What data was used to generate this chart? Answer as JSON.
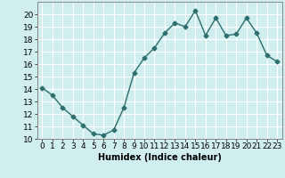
{
  "x": [
    0,
    1,
    2,
    3,
    4,
    5,
    6,
    7,
    8,
    9,
    10,
    11,
    12,
    13,
    14,
    15,
    16,
    17,
    18,
    19,
    20,
    21,
    22,
    23
  ],
  "y": [
    14.1,
    13.5,
    12.5,
    11.8,
    11.1,
    10.4,
    10.3,
    10.7,
    12.5,
    15.3,
    16.5,
    17.3,
    18.5,
    19.3,
    19.0,
    20.3,
    18.3,
    19.7,
    18.3,
    18.4,
    19.7,
    18.5,
    16.7,
    16.2
  ],
  "line_color": "#2d6e6e",
  "marker": "D",
  "markersize": 2.5,
  "linewidth": 1.0,
  "bg_color": "#d0eeee",
  "grid_color": "#ffffff",
  "xlabel": "Humidex (Indice chaleur)",
  "xlim": [
    -0.5,
    23.5
  ],
  "ylim": [
    10,
    21
  ],
  "yticks": [
    10,
    11,
    12,
    13,
    14,
    15,
    16,
    17,
    18,
    19,
    20
  ],
  "xticks": [
    0,
    1,
    2,
    3,
    4,
    5,
    6,
    7,
    8,
    9,
    10,
    11,
    12,
    13,
    14,
    15,
    16,
    17,
    18,
    19,
    20,
    21,
    22,
    23
  ],
  "xlabel_fontsize": 7,
  "tick_fontsize": 6.5
}
